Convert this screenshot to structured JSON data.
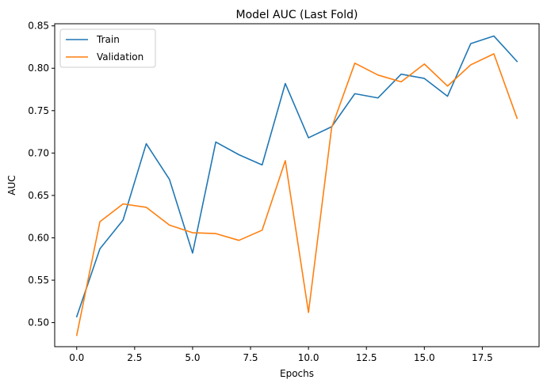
{
  "chart_data": {
    "type": "line",
    "title": "Model AUC (Last Fold)",
    "xlabel": "Epochs",
    "ylabel": "AUC",
    "x": [
      0,
      1,
      2,
      3,
      4,
      5,
      6,
      7,
      8,
      9,
      10,
      11,
      12,
      13,
      14,
      15,
      16,
      17,
      18,
      19
    ],
    "xlim": [
      -0.95,
      19.95
    ],
    "ylim": [
      0.4716,
      0.8525
    ],
    "xticks": [
      0.0,
      2.5,
      5.0,
      7.5,
      10.0,
      12.5,
      15.0,
      17.5
    ],
    "xtick_labels": [
      "0.0",
      "2.5",
      "5.0",
      "7.5",
      "10.0",
      "12.5",
      "15.0",
      "17.5"
    ],
    "yticks": [
      0.5,
      0.55,
      0.6,
      0.65,
      0.7,
      0.75,
      0.8,
      0.85
    ],
    "ytick_labels": [
      "0.50",
      "0.55",
      "0.60",
      "0.65",
      "0.70",
      "0.75",
      "0.80",
      "0.85"
    ],
    "grid": false,
    "legend_position": "top-left",
    "series": [
      {
        "name": "Train",
        "color": "#1f77b4",
        "values": [
          0.507,
          0.587,
          0.621,
          0.711,
          0.669,
          0.582,
          0.713,
          0.698,
          0.686,
          0.782,
          0.718,
          0.731,
          0.77,
          0.765,
          0.793,
          0.788,
          0.767,
          0.829,
          0.838,
          0.808
        ]
      },
      {
        "name": "Validation",
        "color": "#ff7f0e",
        "values": [
          0.485,
          0.619,
          0.64,
          0.636,
          0.615,
          0.606,
          0.605,
          0.597,
          0.609,
          0.691,
          0.512,
          0.73,
          0.806,
          0.792,
          0.784,
          0.805,
          0.779,
          0.804,
          0.817,
          0.741
        ]
      }
    ]
  }
}
